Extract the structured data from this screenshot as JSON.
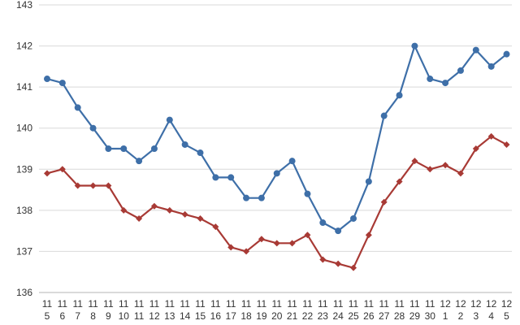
{
  "chart_data": {
    "type": "line",
    "title": "",
    "xlabel": "",
    "ylabel": "",
    "ylim": [
      136,
      143
    ],
    "yticks": [
      136,
      137,
      138,
      139,
      140,
      141,
      142,
      143
    ],
    "grid": true,
    "legend": "none",
    "categories": [
      [
        "11",
        "5"
      ],
      [
        "11",
        "6"
      ],
      [
        "11",
        "7"
      ],
      [
        "11",
        "8"
      ],
      [
        "11",
        "9"
      ],
      [
        "11",
        "10"
      ],
      [
        "11",
        "11"
      ],
      [
        "11",
        "12"
      ],
      [
        "11",
        "13"
      ],
      [
        "11",
        "14"
      ],
      [
        "11",
        "15"
      ],
      [
        "11",
        "16"
      ],
      [
        "11",
        "17"
      ],
      [
        "11",
        "18"
      ],
      [
        "11",
        "19"
      ],
      [
        "11",
        "20"
      ],
      [
        "11",
        "21"
      ],
      [
        "11",
        "22"
      ],
      [
        "11",
        "23"
      ],
      [
        "11",
        "24"
      ],
      [
        "11",
        "25"
      ],
      [
        "11",
        "26"
      ],
      [
        "11",
        "27"
      ],
      [
        "11",
        "28"
      ],
      [
        "11",
        "29"
      ],
      [
        "11",
        "30"
      ],
      [
        "12",
        "1"
      ],
      [
        "12",
        "2"
      ],
      [
        "12",
        "3"
      ],
      [
        "12",
        "4"
      ],
      [
        "12",
        "5"
      ]
    ],
    "series": [
      {
        "color": "#3e6fa8",
        "marker": "circle",
        "values": [
          141.2,
          141.1,
          140.5,
          140.0,
          139.5,
          139.5,
          139.2,
          139.5,
          140.2,
          139.6,
          139.4,
          138.8,
          138.8,
          138.3,
          138.3,
          138.9,
          139.2,
          138.4,
          137.7,
          137.5,
          137.8,
          138.7,
          140.3,
          140.8,
          142.0,
          141.2,
          141.1,
          141.4,
          141.9,
          141.5,
          141.8
        ]
      },
      {
        "color": "#a83a35",
        "marker": "diamond",
        "values": [
          138.9,
          139.0,
          138.6,
          138.6,
          138.6,
          138.0,
          137.8,
          138.1,
          138.0,
          137.9,
          137.8,
          137.6,
          137.1,
          137.0,
          137.3,
          137.2,
          137.2,
          137.4,
          136.8,
          136.7,
          136.6,
          137.4,
          138.2,
          138.7,
          139.2,
          139.0,
          139.1,
          138.9,
          139.5,
          139.8,
          139.6
        ]
      }
    ]
  }
}
